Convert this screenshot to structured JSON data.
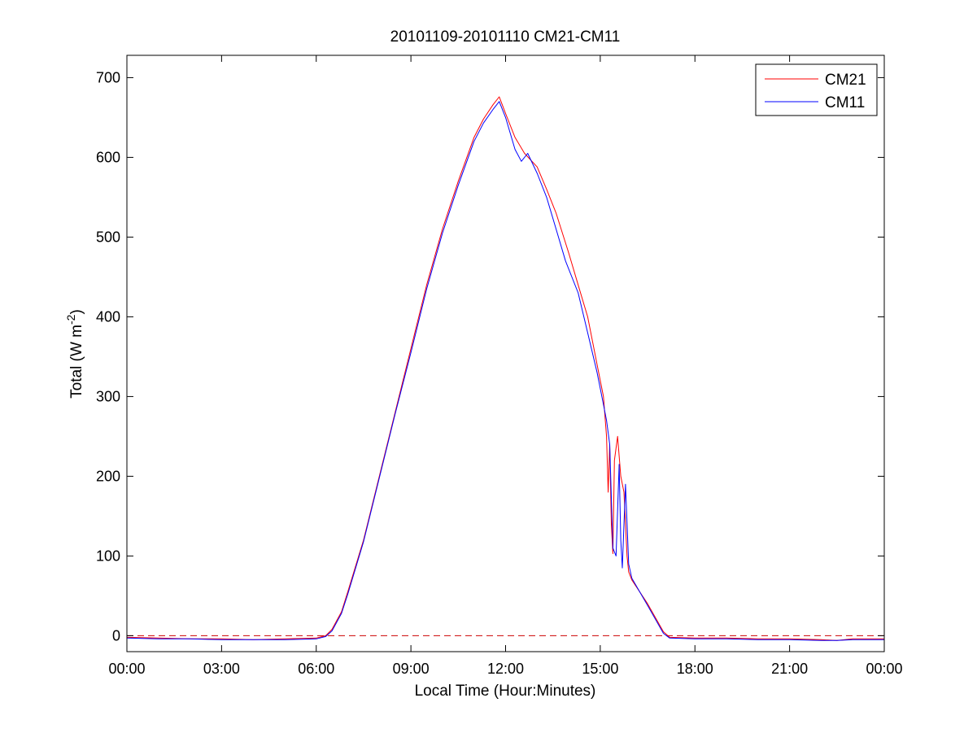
{
  "chart_data": {
    "type": "line",
    "title": "20101109-20101110 CM21-CM11",
    "xlabel": "Local Time (Hour:Minutes)",
    "ylabel_main": "Total (W m",
    "ylabel_sup": "-2",
    "ylabel_close": ")",
    "xlim": [
      0,
      24
    ],
    "ylim": [
      -20,
      728
    ],
    "x_ticks": [
      0,
      3,
      6,
      9,
      12,
      15,
      18,
      21,
      24
    ],
    "x_tick_labels": [
      "00:00",
      "03:00",
      "06:00",
      "09:00",
      "12:00",
      "15:00",
      "18:00",
      "21:00",
      "00:00"
    ],
    "y_ticks": [
      0,
      100,
      200,
      300,
      400,
      500,
      600,
      700
    ],
    "y_tick_labels": [
      "0",
      "100",
      "200",
      "300",
      "400",
      "500",
      "600",
      "700"
    ],
    "grid": false,
    "legend_position": "top-right",
    "zero_reference_line": {
      "y": 0,
      "color": "#cc0000",
      "style": "dashed"
    },
    "series": [
      {
        "name": "CM21",
        "color": "#ff0000",
        "points": [
          [
            0,
            -2
          ],
          [
            1,
            -3
          ],
          [
            2,
            -4
          ],
          [
            3,
            -4
          ],
          [
            4,
            -5
          ],
          [
            5,
            -4
          ],
          [
            6,
            -3
          ],
          [
            6.3,
            0
          ],
          [
            6.5,
            8
          ],
          [
            6.8,
            30
          ],
          [
            7,
            55
          ],
          [
            7.5,
            120
          ],
          [
            8,
            200
          ],
          [
            8.5,
            280
          ],
          [
            9,
            360
          ],
          [
            9.5,
            440
          ],
          [
            10,
            510
          ],
          [
            10.5,
            570
          ],
          [
            11,
            625
          ],
          [
            11.3,
            648
          ],
          [
            11.6,
            666
          ],
          [
            11.8,
            676
          ],
          [
            12,
            655
          ],
          [
            12.3,
            625
          ],
          [
            12.6,
            605
          ],
          [
            13,
            588
          ],
          [
            13.3,
            560
          ],
          [
            13.6,
            530
          ],
          [
            14,
            480
          ],
          [
            14.3,
            440
          ],
          [
            14.6,
            400
          ],
          [
            14.9,
            340
          ],
          [
            15.1,
            300
          ],
          [
            15.2,
            250
          ],
          [
            15.25,
            180
          ],
          [
            15.3,
            240
          ],
          [
            15.35,
            140
          ],
          [
            15.4,
            103
          ],
          [
            15.45,
            220
          ],
          [
            15.55,
            250
          ],
          [
            15.65,
            200
          ],
          [
            15.75,
            180
          ],
          [
            15.85,
            100
          ],
          [
            15.9,
            80
          ],
          [
            16,
            70
          ],
          [
            16.5,
            40
          ],
          [
            17,
            5
          ],
          [
            17.2,
            -2
          ],
          [
            18,
            -3
          ],
          [
            19,
            -3
          ],
          [
            20,
            -4
          ],
          [
            21,
            -4
          ],
          [
            22,
            -5
          ],
          [
            22.5,
            -6
          ],
          [
            23,
            -4
          ],
          [
            24,
            -4
          ]
        ]
      },
      {
        "name": "CM11",
        "color": "#0000ff",
        "points": [
          [
            0,
            -3
          ],
          [
            1,
            -4
          ],
          [
            2,
            -4
          ],
          [
            3,
            -5
          ],
          [
            4,
            -5
          ],
          [
            5,
            -5
          ],
          [
            6,
            -4
          ],
          [
            6.3,
            -1
          ],
          [
            6.5,
            6
          ],
          [
            6.8,
            28
          ],
          [
            7,
            52
          ],
          [
            7.5,
            118
          ],
          [
            8,
            198
          ],
          [
            8.5,
            278
          ],
          [
            9,
            355
          ],
          [
            9.5,
            435
          ],
          [
            10,
            505
          ],
          [
            10.5,
            565
          ],
          [
            11,
            620
          ],
          [
            11.3,
            643
          ],
          [
            11.6,
            660
          ],
          [
            11.8,
            670
          ],
          [
            12,
            650
          ],
          [
            12.3,
            610
          ],
          [
            12.5,
            595
          ],
          [
            12.7,
            605
          ],
          [
            13,
            580
          ],
          [
            13.3,
            550
          ],
          [
            13.6,
            510
          ],
          [
            13.9,
            470
          ],
          [
            14.3,
            430
          ],
          [
            14.6,
            380
          ],
          [
            14.9,
            330
          ],
          [
            15.1,
            290
          ],
          [
            15.2,
            270
          ],
          [
            15.3,
            240
          ],
          [
            15.4,
            110
          ],
          [
            15.5,
            100
          ],
          [
            15.6,
            215
          ],
          [
            15.65,
            120
          ],
          [
            15.7,
            85
          ],
          [
            15.8,
            190
          ],
          [
            15.9,
            90
          ],
          [
            16,
            72
          ],
          [
            16.5,
            38
          ],
          [
            17,
            3
          ],
          [
            17.2,
            -3
          ],
          [
            18,
            -4
          ],
          [
            19,
            -4
          ],
          [
            20,
            -5
          ],
          [
            21,
            -5
          ],
          [
            22,
            -6
          ],
          [
            22.5,
            -6
          ],
          [
            23,
            -5
          ],
          [
            24,
            -5
          ]
        ]
      }
    ]
  }
}
